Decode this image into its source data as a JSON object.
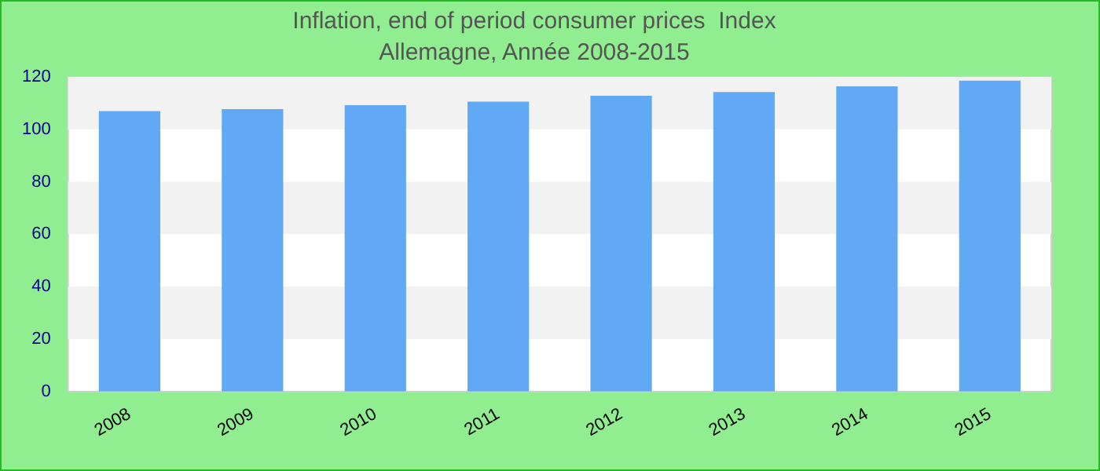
{
  "chart_data": {
    "type": "bar",
    "title": "Inflation, end of period consumer prices  Index",
    "subtitle": "Allemagne, Année 2008-2015",
    "categories": [
      "2008",
      "2009",
      "2010",
      "2011",
      "2012",
      "2013",
      "2014",
      "2015"
    ],
    "values": [
      107.0,
      107.7,
      109.2,
      110.6,
      112.8,
      114.2,
      116.4,
      118.6
    ],
    "color": "#61a9f5",
    "ylim": [
      0,
      120
    ],
    "yticks": [
      0,
      20,
      40,
      60,
      80,
      100,
      120
    ],
    "grid": false,
    "bands": [
      {
        "axis": "y",
        "from": 20,
        "to": 40,
        "color": "#f2f2f2"
      },
      {
        "axis": "y",
        "from": 60,
        "to": 80,
        "color": "#f2f2f2"
      },
      {
        "axis": "y",
        "from": 100,
        "to": 120,
        "color": "#f2f2f2"
      }
    ]
  }
}
